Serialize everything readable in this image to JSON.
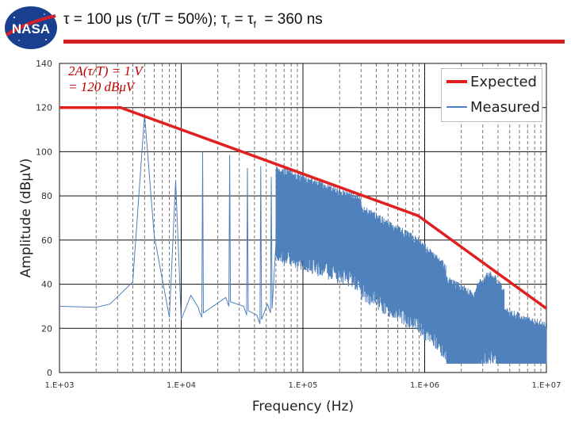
{
  "logo": {
    "text": "NASA"
  },
  "title": {
    "main": "τ = 100 μs (τ/T = 50%); τ",
    "sub_r": "r",
    "mid": " = τ",
    "sub_f": "f",
    "end": "  = 360 ns"
  },
  "colors": {
    "expected": "#e02020",
    "measured": "#4f81bd",
    "title_rule": "#d21f1f",
    "annotation": "#c00000"
  },
  "chart_data": {
    "type": "line",
    "xscale": "log",
    "xlim": [
      1000,
      10000000
    ],
    "ylim": [
      0,
      140
    ],
    "xlabel": "Frequency (Hz)",
    "ylabel": "Amplitude (dBμV)",
    "xticks": [
      "1.E+03",
      "1.E+04",
      "1.E+05",
      "1.E+06",
      "1.E+07"
    ],
    "yticks": [
      "0",
      "20",
      "40",
      "60",
      "80",
      "100",
      "120",
      "140"
    ],
    "annotations": [
      "2A(τ/T) = 1 V",
      "= 120 dBμV"
    ],
    "legend": {
      "position": "top-right",
      "entries": [
        "Expected",
        "Measured"
      ]
    },
    "series": [
      {
        "name": "Expected",
        "x": [
          1000,
          3180,
          884000,
          10000000
        ],
        "y": [
          120,
          120,
          71,
          29
        ]
      },
      {
        "name": "Measured",
        "x": [
          1000,
          2000,
          2600,
          4000,
          5000,
          6000,
          8000,
          9000,
          10000,
          12000,
          14000
        ],
        "y": [
          30,
          29.5,
          31,
          41,
          117,
          62,
          25,
          87,
          24,
          35,
          28
        ],
        "note": "odd harmonics at multiples of 5 kHz; dense broadband content above 1e5 Hz; bump near 3e6 Hz"
      }
    ]
  }
}
